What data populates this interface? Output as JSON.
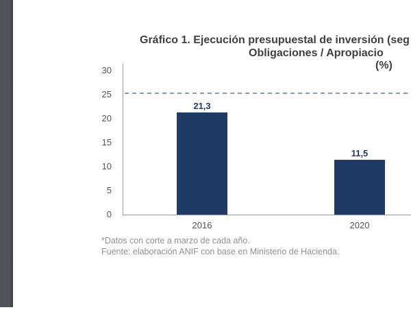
{
  "page": {
    "background": "#ffffff",
    "edge_strip_color": "#50545a"
  },
  "chart": {
    "title_lines": [
      "Gráfico 1. Ejecución presupuestal de inversión (seg",
      "Obligaciones / Apropiacio",
      "(%)"
    ],
    "footnotes": [
      "*Datos con corte a marzo de cada año.",
      "Fuente: elaboración ANIF con base en Ministerio de Hacienda."
    ],
    "colors": {
      "bar": "#1f3a63",
      "value_label": "#1f3a63",
      "reference_line": "#8b9aac",
      "axis": "#9a9a9a",
      "tick_label": "#545454",
      "title": "#3f3f3f",
      "footnote": "#8e9194"
    }
  },
  "chart_data": {
    "type": "bar",
    "title": "Gráfico 1. Ejecución presupuestal de inversión (seg… Obligaciones / Apropiacio… (%)",
    "categories": [
      "2016",
      "2020"
    ],
    "values": [
      21.3,
      11.5
    ],
    "value_labels": [
      "21,3",
      "11,5"
    ],
    "xlabel": "",
    "ylabel": "",
    "ylim": [
      0,
      30
    ],
    "yticks": [
      0,
      5,
      10,
      15,
      20,
      25,
      30
    ],
    "reference_line": {
      "value": 25.3,
      "style": "dashed"
    },
    "grid": false,
    "legend": false,
    "cropped_right_edge": true
  }
}
